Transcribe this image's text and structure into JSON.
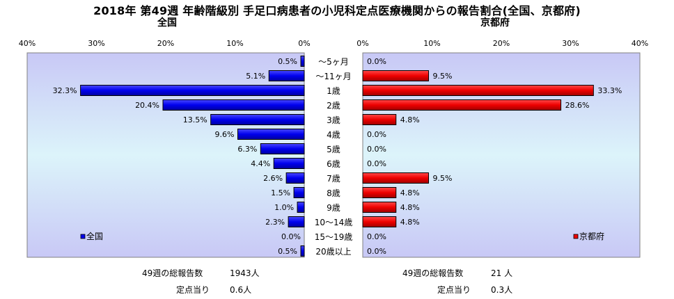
{
  "title": "2018年 第49週 年齢階級別 手足口病患者の小児科定点医療機関からの報告割合(全国、京都府)",
  "chart_data": [
    {
      "type": "bar",
      "orientation": "horizontal",
      "direction": "right-to-left",
      "title": "全国",
      "categories": [
        "～5ヶ月",
        "～11ヶ月",
        "1歳",
        "2歳",
        "3歳",
        "4歳",
        "5歳",
        "6歳",
        "7歳",
        "8歳",
        "9歳",
        "10～14歳",
        "15～19歳",
        "20歳以上"
      ],
      "series": [
        {
          "name": "全国",
          "values": [
            0.5,
            5.1,
            32.3,
            20.4,
            13.5,
            9.6,
            6.3,
            4.4,
            2.6,
            1.5,
            1.0,
            2.3,
            0.0,
            0.5
          ],
          "color": "#0000ee"
        }
      ],
      "data_labels": [
        "0.5%",
        "5.1%",
        "32.3%",
        "20.4%",
        "13.5%",
        "9.6%",
        "6.3%",
        "4.4%",
        "2.6%",
        "1.5%",
        "1.0%",
        "2.3%",
        "0.0%",
        "0.5%"
      ],
      "xlim": [
        0,
        40
      ],
      "ticks": [
        "40%",
        "30%",
        "20%",
        "10%",
        "0%"
      ],
      "legend": "bottom-left"
    },
    {
      "type": "bar",
      "orientation": "horizontal",
      "direction": "left-to-right",
      "title": "京都府",
      "categories": [
        "～5ヶ月",
        "～11ヶ月",
        "1歳",
        "2歳",
        "3歳",
        "4歳",
        "5歳",
        "6歳",
        "7歳",
        "8歳",
        "9歳",
        "10～14歳",
        "15～19歳",
        "20歳以上"
      ],
      "series": [
        {
          "name": "京都府",
          "values": [
            0.0,
            9.5,
            33.3,
            28.6,
            4.8,
            0.0,
            0.0,
            0.0,
            9.5,
            4.8,
            4.8,
            4.8,
            0.0,
            0.0
          ],
          "color": "#ee0000"
        }
      ],
      "data_labels": [
        "0.0%",
        "9.5%",
        "33.3%",
        "28.6%",
        "4.8%",
        "0.0%",
        "0.0%",
        "0.0%",
        "9.5%",
        "4.8%",
        "4.8%",
        "4.8%",
        "0.0%",
        "0.0%"
      ],
      "xlim": [
        0,
        40
      ],
      "ticks": [
        "0%",
        "10%",
        "20%",
        "30%",
        "40%"
      ],
      "legend": "bottom-right"
    }
  ],
  "footer": {
    "national": {
      "total_label": "49週の総報告数",
      "total_value": "1943人",
      "per_site_label": "定点当り",
      "per_site_value": "0.6人"
    },
    "kyoto": {
      "total_label": "49週の総報告数",
      "total_value": "21 人",
      "per_site_label": "定点当り",
      "per_site_value": "0.3人"
    }
  }
}
